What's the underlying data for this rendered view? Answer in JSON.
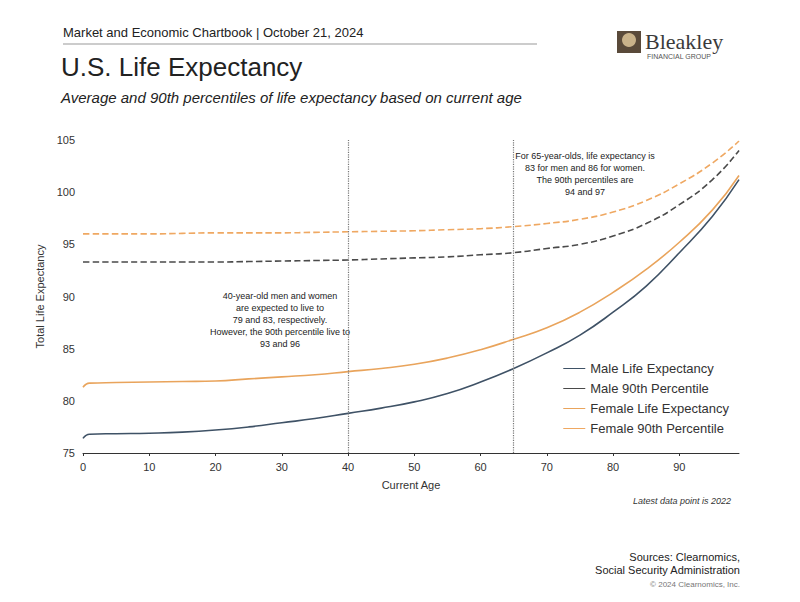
{
  "chart_data": {
    "type": "line",
    "header": "Market and Economic Chartbook | October 21, 2024",
    "brand": [
      "Bleakley",
      "FINANCIAL GROUP"
    ],
    "title": "U.S. Life Expectancy",
    "subtitle": "Average and 90th percentiles of life expectancy based on current age",
    "x_label": "Current Age",
    "y_label": "Total Life Expectancy",
    "note": "Latest data point is 2022",
    "sources": [
      "Sources: Clearnomics,",
      "Social Security Administration"
    ],
    "copyright": "© 2024 Clearnomics, Inc.",
    "annotations": [
      {
        "x": 40,
        "text": [
          "40-year-old men and women",
          "are expected to live to",
          "79 and 83, respectively.",
          "However, the 90th percentile live to",
          "93 and 96"
        ]
      },
      {
        "x": 65,
        "text": [
          "For 65-year-olds, life expectancy is",
          "83 for men and 86 for women.",
          "The 90th percentiles are",
          "94 and 97"
        ]
      }
    ],
    "x": [
      0,
      1,
      5,
      10,
      15,
      20,
      25,
      30,
      35,
      40,
      45,
      50,
      55,
      60,
      65,
      70,
      75,
      80,
      85,
      90,
      95,
      99
    ],
    "series": [
      {
        "name": "Male Life Expectancy",
        "color": "#3f5266",
        "line_style": "solid",
        "values": [
          76.4,
          76.8,
          76.85,
          76.9,
          77.0,
          77.2,
          77.5,
          77.9,
          78.3,
          78.8,
          79.3,
          79.9,
          80.7,
          81.8,
          83.1,
          84.6,
          86.3,
          88.5,
          91.0,
          94.2,
          97.7,
          101.2
        ]
      },
      {
        "name": "Male 90th Percentile",
        "color": "#4a4a4a",
        "line_style": "dashed",
        "values": [
          93.3,
          93.3,
          93.3,
          93.3,
          93.3,
          93.3,
          93.35,
          93.4,
          93.45,
          93.5,
          93.6,
          93.7,
          93.8,
          94.0,
          94.2,
          94.6,
          95.0,
          95.8,
          97.0,
          98.8,
          101.2,
          104.0
        ]
      },
      {
        "name": "Female Life Expectancy",
        "color": "#e9a45c",
        "line_style": "solid",
        "values": [
          81.3,
          81.7,
          81.75,
          81.8,
          81.85,
          81.9,
          82.1,
          82.3,
          82.5,
          82.8,
          83.1,
          83.5,
          84.1,
          84.9,
          85.9,
          87.0,
          88.5,
          90.4,
          92.6,
          95.2,
          98.3,
          101.6
        ]
      },
      {
        "name": "Female 90th Percentile",
        "color": "#efa862",
        "line_style": "dashed",
        "values": [
          96.0,
          96.0,
          96.0,
          96.0,
          96.05,
          96.1,
          96.1,
          96.1,
          96.15,
          96.2,
          96.25,
          96.3,
          96.4,
          96.5,
          96.7,
          97.0,
          97.4,
          98.1,
          99.2,
          100.8,
          102.8,
          104.9
        ]
      }
    ],
    "xlim": [
      0,
      99
    ],
    "ylim": [
      75,
      105
    ],
    "xticks": [
      0,
      10,
      20,
      30,
      40,
      50,
      60,
      70,
      80,
      90
    ],
    "yticks": [
      75,
      80,
      85,
      90,
      95,
      100,
      105
    ],
    "grid": false,
    "legend": "lower right"
  }
}
